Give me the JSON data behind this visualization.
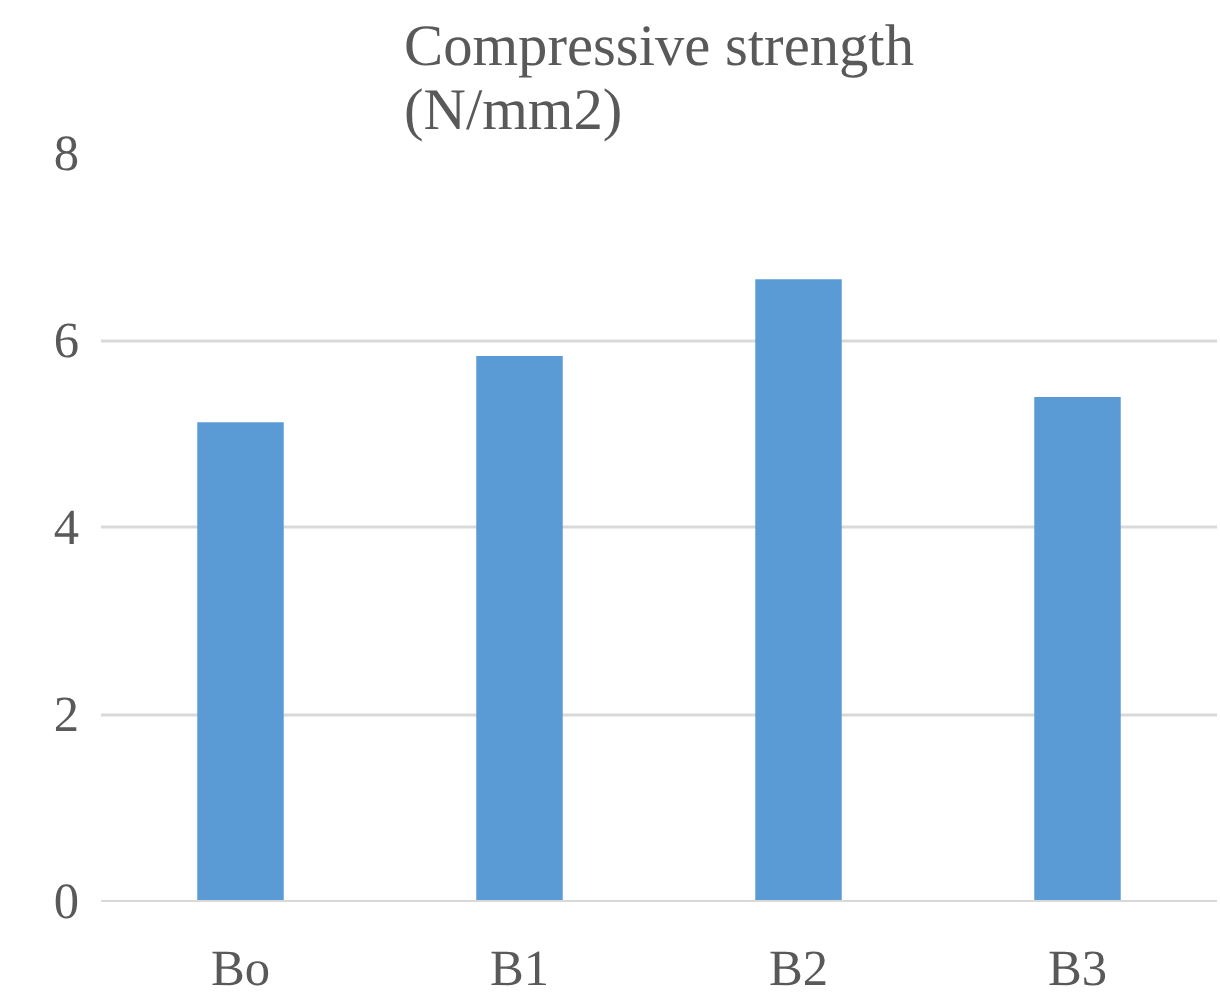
{
  "chart_data": {
    "type": "bar",
    "title": "Compressive strength\n(N/mm2)",
    "categories": [
      "Bo",
      "B1",
      "B2",
      "B3"
    ],
    "values": [
      5.12,
      5.83,
      6.65,
      5.39
    ],
    "color": "#5b9bd5",
    "ylim": [
      0,
      8
    ],
    "yticks": [
      0,
      2,
      4,
      6,
      8
    ],
    "grid": "y"
  }
}
